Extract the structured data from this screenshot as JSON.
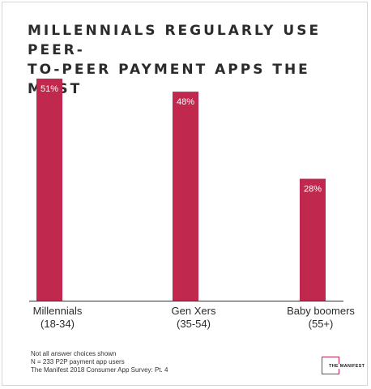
{
  "title_lines": [
    "MILLENNIALS REGULARLY USE PEER-",
    "TO-PEER PAYMENT APPS THE MOST"
  ],
  "chart_data": {
    "type": "bar",
    "title": "MILLENNIALS REGULARLY USE PEER-TO-PEER PAYMENT APPS THE MOST",
    "categories": [
      "Millennials (18-34)",
      "Gen Xers (35-54)",
      "Baby boomers (55+)"
    ],
    "category_lines": [
      [
        "Millennials",
        "(18-34)"
      ],
      [
        "Gen Xers",
        "(35-54)"
      ],
      [
        "Baby boomers",
        "(55+)"
      ]
    ],
    "values": [
      51,
      48,
      28
    ],
    "data_labels": [
      "51%",
      "48%",
      "28%"
    ],
    "unit": "%",
    "ylim": [
      0,
      51
    ],
    "bar_color": "#c0284e",
    "axis_color": "#333333",
    "grid": false,
    "legend": "none",
    "xlabel": "",
    "ylabel": ""
  },
  "footnote": [
    "Not all answer choices shown",
    "N = 233 P2P payment app users",
    "The Manifest 2018 Consumer App Survey: Pt. 4"
  ],
  "logo_text": "THE MANIFEST",
  "colors": {
    "accent": "#c0284e",
    "text": "#2b2b2b"
  }
}
